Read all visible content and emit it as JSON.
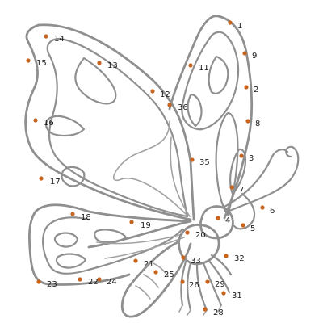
{
  "dot_color": "#c8641e",
  "line_color": "#8f8f8f",
  "points": [
    {
      "n": "1"
    },
    {
      "n": "9"
    },
    {
      "n": "2"
    },
    {
      "n": "8"
    },
    {
      "n": "3"
    },
    {
      "n": "7"
    },
    {
      "n": "6"
    },
    {
      "n": "4"
    },
    {
      "n": "5"
    },
    {
      "n": "32"
    },
    {
      "n": "31"
    },
    {
      "n": "29"
    },
    {
      "n": "28"
    },
    {
      "n": "26"
    },
    {
      "n": "33"
    },
    {
      "n": "25"
    },
    {
      "n": "24"
    },
    {
      "n": "22"
    },
    {
      "n": "23"
    },
    {
      "n": "21"
    },
    {
      "n": "20"
    },
    {
      "n": "19"
    },
    {
      "n": "18"
    },
    {
      "n": "17"
    },
    {
      "n": "16"
    },
    {
      "n": "15"
    },
    {
      "n": "14"
    },
    {
      "n": "13"
    },
    {
      "n": "12"
    },
    {
      "n": "36"
    },
    {
      "n": "11"
    },
    {
      "n": "35"
    }
  ]
}
